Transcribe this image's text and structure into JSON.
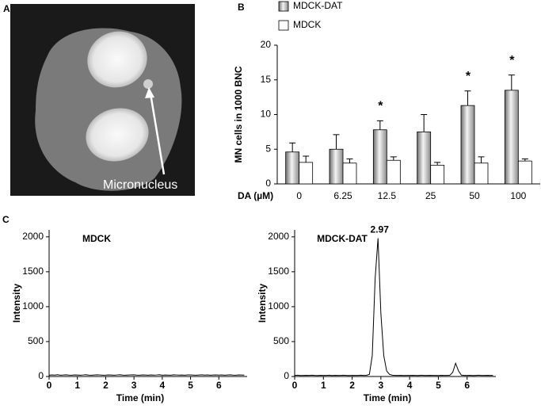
{
  "panel_labels": [
    "A",
    "B",
    "C"
  ],
  "image_annotation": "Micronucleus",
  "chart_data": [
    {
      "type": "bar",
      "categories": [
        "0",
        "6.25",
        "12.5",
        "25",
        "50",
        "100"
      ],
      "x_label": "DA (µM)",
      "y_label": "MN cells in 1000 BNC",
      "ylim": [
        0,
        20
      ],
      "yticks": [
        0,
        5,
        10,
        15,
        20
      ],
      "series": [
        {
          "name": "MDCK-DAT",
          "color": "#b0b0b0",
          "values": [
            4.6,
            5.0,
            7.8,
            7.5,
            11.3,
            13.5
          ],
          "errors": [
            1.3,
            2.1,
            1.3,
            2.5,
            2.1,
            2.2
          ]
        },
        {
          "name": "MDCK",
          "color": "#ffffff",
          "values": [
            3.1,
            3.0,
            3.4,
            2.7,
            3.0,
            3.3
          ],
          "errors": [
            0.9,
            0.6,
            0.5,
            0.4,
            0.9,
            0.3
          ]
        }
      ],
      "annotations": [
        {
          "text": "*",
          "category": "12.5"
        },
        {
          "text": "*",
          "category": "50"
        },
        {
          "text": "*",
          "category": "100"
        }
      ],
      "legend": "top"
    },
    {
      "type": "line",
      "title": "MDCK",
      "x_label": "Time (min)",
      "y_label": "Intensity",
      "xlim": [
        0,
        7
      ],
      "xticks": [
        0,
        1,
        2,
        3,
        4,
        5,
        6
      ],
      "ylim": [
        0,
        2100
      ],
      "yticks": [
        0,
        500,
        1000,
        1500,
        2000
      ],
      "x": [
        0,
        0.1,
        0.2,
        0.3,
        0.4,
        0.5,
        0.6,
        0.7,
        0.8,
        0.9,
        1,
        1.1,
        1.2,
        1.3,
        1.4,
        1.5,
        1.6,
        1.7,
        1.8,
        1.9,
        2,
        2.1,
        2.2,
        2.3,
        2.4,
        2.5,
        2.6,
        2.7,
        2.8,
        2.9,
        3,
        3.1,
        3.2,
        3.3,
        3.4,
        3.5,
        3.6,
        3.7,
        3.8,
        3.9,
        4,
        4.1,
        4.2,
        4.3,
        4.4,
        4.5,
        4.6,
        4.7,
        4.8,
        4.9,
        5,
        5.1,
        5.2,
        5.3,
        5.4,
        5.5,
        5.6,
        5.7,
        5.8,
        5.9,
        6,
        6.1,
        6.2,
        6.3,
        6.4,
        6.5,
        6.6,
        6.7,
        6.8,
        6.9
      ],
      "series": [
        {
          "color": "#000000",
          "values": [
            18,
            22,
            20,
            25,
            19,
            21,
            24,
            20,
            18,
            23,
            21,
            19,
            22,
            26,
            20,
            18,
            21,
            24,
            22,
            19,
            20,
            23,
            21,
            18,
            22,
            25,
            20,
            19,
            21,
            23,
            24,
            20,
            18,
            22,
            21,
            19,
            23,
            20,
            22,
            25,
            19,
            21,
            20,
            18,
            24,
            22,
            20,
            21,
            19,
            23,
            22,
            20,
            18,
            21,
            24,
            20,
            22,
            19,
            21,
            23,
            20,
            22,
            18,
            21,
            24,
            20,
            19,
            22,
            21,
            20
          ]
        }
      ]
    },
    {
      "type": "line",
      "title": "MDCK-DAT",
      "x_label": "Time (min)",
      "y_label": "Intensity",
      "xlim": [
        0,
        7
      ],
      "xticks": [
        0,
        1,
        2,
        3,
        4,
        5,
        6
      ],
      "ylim": [
        0,
        2100
      ],
      "yticks": [
        0,
        500,
        1000,
        1500,
        2000
      ],
      "x": [
        0,
        0.1,
        0.2,
        0.3,
        0.4,
        0.5,
        0.6,
        0.7,
        0.8,
        0.9,
        1,
        1.1,
        1.2,
        1.3,
        1.4,
        1.5,
        1.6,
        1.7,
        1.8,
        1.9,
        2,
        2.1,
        2.2,
        2.3,
        2.4,
        2.5,
        2.6,
        2.7,
        2.8,
        2.9,
        3,
        3.1,
        3.2,
        3.3,
        3.4,
        3.5,
        3.6,
        3.7,
        3.8,
        3.9,
        4,
        4.1,
        4.2,
        4.3,
        4.4,
        4.5,
        4.6,
        4.7,
        4.8,
        4.9,
        5,
        5.1,
        5.2,
        5.3,
        5.4,
        5.5,
        5.6,
        5.7,
        5.8,
        5.9,
        6,
        6.1,
        6.2,
        6.3,
        6.4,
        6.5,
        6.6,
        6.7,
        6.8,
        6.9
      ],
      "series": [
        {
          "color": "#000000",
          "values": [
            15,
            18,
            14,
            16,
            17,
            15,
            19,
            16,
            14,
            17,
            16,
            15,
            18,
            14,
            17,
            16,
            15,
            18,
            16,
            14,
            17,
            15,
            16,
            18,
            15,
            17,
            30,
            300,
            1400,
            1980,
            900,
            300,
            80,
            30,
            18,
            16,
            15,
            17,
            14,
            16,
            15,
            17,
            16,
            14,
            18,
            15,
            16,
            17,
            15,
            16,
            14,
            17,
            15,
            16,
            18,
            60,
            190,
            80,
            20,
            16,
            15,
            17,
            14,
            16,
            18,
            15,
            16,
            17,
            15,
            16
          ]
        }
      ],
      "annotations": [
        {
          "text": "2.97"
        }
      ]
    }
  ]
}
